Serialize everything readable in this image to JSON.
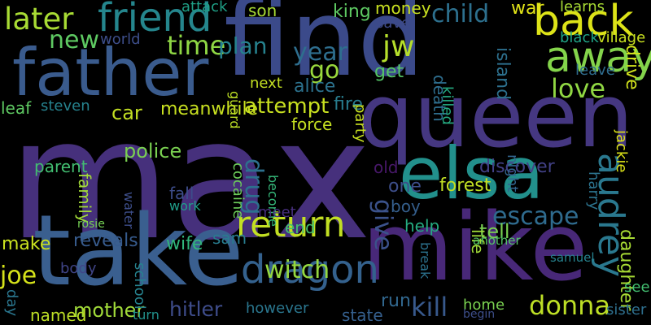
{
  "words": [
    {
      "text": "max",
      "color": "#46307c",
      "v": 0
    },
    {
      "text": "find",
      "color": "#3b4a8a",
      "v": 0
    },
    {
      "text": "take",
      "color": "#3a5f8f",
      "v": 0
    },
    {
      "text": "mike",
      "color": "#482878",
      "v": 0
    },
    {
      "text": "queen",
      "color": "#453781",
      "v": 0
    },
    {
      "text": "father",
      "color": "#3a5b8d",
      "v": 0
    },
    {
      "text": "elsa",
      "color": "#22908c",
      "v": 0
    },
    {
      "text": "later",
      "color": "#a8db34",
      "v": 0
    },
    {
      "text": "friend",
      "color": "#25868d",
      "v": 0
    },
    {
      "text": "back",
      "color": "#dde318",
      "v": 0
    },
    {
      "text": "away",
      "color": "#84d44b",
      "v": 0
    },
    {
      "text": "return",
      "color": "#c2df23",
      "v": 0
    },
    {
      "text": "dragon",
      "color": "#34618d",
      "v": 0
    },
    {
      "text": "audrey",
      "color": "#2a788e",
      "v": 1
    },
    {
      "text": "witch",
      "color": "#95d840",
      "v": 0
    },
    {
      "text": "kill",
      "color": "#38598c",
      "v": 0
    },
    {
      "text": "donna",
      "color": "#bddf26",
      "v": 0
    },
    {
      "text": "escape",
      "color": "#2f6b8e",
      "v": 0
    },
    {
      "text": "child",
      "color": "#2d708e",
      "v": 0
    },
    {
      "text": "new",
      "color": "#5ec962",
      "v": 0
    },
    {
      "text": "time",
      "color": "#8fd744",
      "v": 0
    },
    {
      "text": "jw",
      "color": "#b5de2b",
      "v": 0
    },
    {
      "text": "year",
      "color": "#2e6e8e",
      "v": 0
    },
    {
      "text": "love",
      "color": "#90d743",
      "v": 0
    },
    {
      "text": "plan",
      "color": "#26828e",
      "v": 0
    },
    {
      "text": "go",
      "color": "#99d83c",
      "v": 0
    },
    {
      "text": "drug",
      "color": "#2d708e",
      "v": 1
    },
    {
      "text": "give",
      "color": "#3b528b",
      "v": 1
    },
    {
      "text": "reveals",
      "color": "#375b8d",
      "v": 0
    },
    {
      "text": "hitler",
      "color": "#3e4c8a",
      "v": 0
    },
    {
      "text": "mother",
      "color": "#a0da39",
      "v": 0
    },
    {
      "text": "joe",
      "color": "#d5e21a",
      "v": 0
    },
    {
      "text": "attempt",
      "color": "#c8e020",
      "v": 0
    },
    {
      "text": "police",
      "color": "#7ad151",
      "v": 0
    },
    {
      "text": "car",
      "color": "#c2df23",
      "v": 0
    },
    {
      "text": "meanwhile",
      "color": "#c8e020",
      "v": 0
    },
    {
      "text": "family",
      "color": "#a2da37",
      "v": 1
    },
    {
      "text": "make",
      "color": "#cae11f",
      "v": 0
    },
    {
      "text": "parent",
      "color": "#42be71",
      "v": 0
    },
    {
      "text": "wife",
      "color": "#31b57b",
      "v": 0
    },
    {
      "text": "help",
      "color": "#25ac82",
      "v": 0
    },
    {
      "text": "tell",
      "color": "#7ad151",
      "v": 0
    },
    {
      "text": "forest",
      "color": "#c2df23",
      "v": 0
    },
    {
      "text": "daughter",
      "color": "#a8db34",
      "v": 1
    },
    {
      "text": "alice",
      "color": "#2c728e",
      "v": 0
    },
    {
      "text": "get",
      "color": "#55c667",
      "v": 0
    },
    {
      "text": "death",
      "color": "#2e6e8e",
      "v": 1
    },
    {
      "text": "island",
      "color": "#2d708e",
      "v": 1
    },
    {
      "text": "drive",
      "color": "#d0e11c",
      "v": 1
    },
    {
      "text": "fall",
      "color": "#3d4d8a",
      "v": 0
    },
    {
      "text": "cocaine",
      "color": "#6ccd5a",
      "v": 1
    },
    {
      "text": "life",
      "color": "#a0da39",
      "v": 1
    },
    {
      "text": "state",
      "color": "#355f8d",
      "v": 0
    },
    {
      "text": "run",
      "color": "#31678e",
      "v": 0
    },
    {
      "text": "sam",
      "color": "#287c8e",
      "v": 0
    },
    {
      "text": "end",
      "color": "#44bf70",
      "v": 0
    },
    {
      "text": "old",
      "color": "#48186a",
      "v": 0
    },
    {
      "text": "one",
      "color": "#3d4e8a",
      "v": 0
    },
    {
      "text": "boy",
      "color": "#355f8d",
      "v": 0
    },
    {
      "text": "money",
      "color": "#c8e020",
      "v": 0
    },
    {
      "text": "king",
      "color": "#5ec962",
      "v": 0
    },
    {
      "text": "war",
      "color": "#e2e418",
      "v": 0
    },
    {
      "text": "save",
      "color": "#3e4a89",
      "v": 0
    },
    {
      "text": "black",
      "color": "#20a386",
      "v": 0
    },
    {
      "text": "village",
      "color": "#c8e020",
      "v": 0
    },
    {
      "text": "leave",
      "color": "#2f6c8e",
      "v": 0
    },
    {
      "text": "discover",
      "color": "#424186",
      "v": 0
    },
    {
      "text": "force",
      "color": "#c5e021",
      "v": 0
    },
    {
      "text": "fire",
      "color": "#287c8e",
      "v": 0
    },
    {
      "text": "party",
      "color": "#c8e020",
      "v": 1
    },
    {
      "text": "become",
      "color": "#35b779",
      "v": 1
    },
    {
      "text": "meet",
      "color": "#472f7d",
      "v": 0
    },
    {
      "text": "however",
      "color": "#2a768e",
      "v": 0
    },
    {
      "text": "school",
      "color": "#26828e",
      "v": 1
    },
    {
      "text": "body",
      "color": "#404588",
      "v": 0
    },
    {
      "text": "named",
      "color": "#bddf26",
      "v": 0
    },
    {
      "text": "turn",
      "color": "#21918c",
      "v": 0
    },
    {
      "text": "home",
      "color": "#7ad151",
      "v": 0
    },
    {
      "text": "sister",
      "color": "#2e6f8e",
      "v": 0
    },
    {
      "text": "see",
      "color": "#43bf71",
      "v": 0
    },
    {
      "text": "harry",
      "color": "#2c738e",
      "v": 1
    },
    {
      "text": "jackie",
      "color": "#dde318",
      "v": 1
    },
    {
      "text": "son",
      "color": "#a8db34",
      "v": 0
    },
    {
      "text": "attack",
      "color": "#1fa187",
      "v": 0
    },
    {
      "text": "world",
      "color": "#3d4e8a",
      "v": 0
    },
    {
      "text": "leaf",
      "color": "#5ec962",
      "v": 0
    },
    {
      "text": "steven",
      "color": "#26828e",
      "v": 0
    },
    {
      "text": "next",
      "color": "#c2df23",
      "v": 0
    },
    {
      "text": "guard",
      "color": "#bddf26",
      "v": 1
    },
    {
      "text": "night",
      "color": "#32658e",
      "v": 1
    },
    {
      "text": "day",
      "color": "#2a768e",
      "v": 1
    },
    {
      "text": "water",
      "color": "#3d4e8a",
      "v": 1
    },
    {
      "text": "work",
      "color": "#1f9e89",
      "v": 0
    },
    {
      "text": "break",
      "color": "#2c728e",
      "v": 1
    },
    {
      "text": "killed",
      "color": "#25ac82",
      "v": 1
    },
    {
      "text": "learns",
      "color": "#a8db34",
      "v": 0
    },
    {
      "text": "another",
      "color": "#55c667",
      "v": 0
    },
    {
      "text": "samuel",
      "color": "#26828e",
      "v": 0
    },
    {
      "text": "begin",
      "color": "#3d4e8a",
      "v": 0
    },
    {
      "text": "rosie",
      "color": "#75d054",
      "v": 0
    },
    {
      "text": "parent_",
      "color": "#000000",
      "v": 0
    }
  ]
}
